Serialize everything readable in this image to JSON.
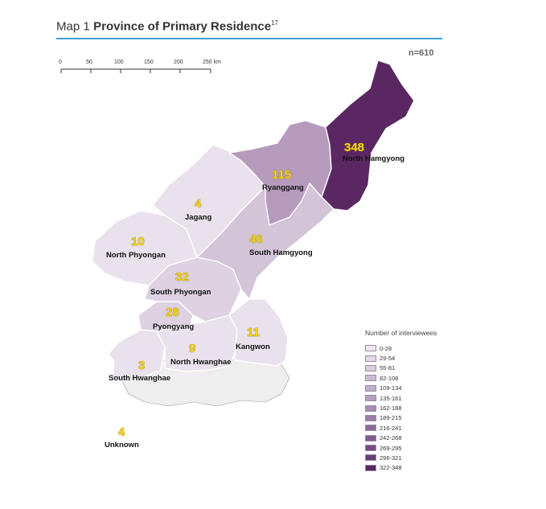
{
  "header": {
    "prefix": "Map 1",
    "title": "Province of Primary Residence",
    "footnote": "17"
  },
  "sample_size": "n=610",
  "scale_bar": {
    "ticks": [
      "0",
      "50",
      "100",
      "150",
      "200",
      "250 km"
    ]
  },
  "provinces": [
    {
      "name": "North Hamgyong",
      "count": "348",
      "color": "#5b2762"
    },
    {
      "name": "Ryanggang",
      "count": "115",
      "color": "#b69bbd"
    },
    {
      "name": "South Hamgyong",
      "count": "46",
      "color": "#d3c4d8"
    },
    {
      "name": "Jagang",
      "count": "4",
      "color": "#e9e1ec"
    },
    {
      "name": "North Phyongan",
      "count": "10",
      "color": "#e9e1ec"
    },
    {
      "name": "South Phyongan",
      "count": "32",
      "color": "#ddd1e2"
    },
    {
      "name": "Pyongyang",
      "count": "28",
      "color": "#ddd1e2"
    },
    {
      "name": "North Hwanghae",
      "count": "9",
      "color": "#e9e1ec"
    },
    {
      "name": "Kangwon",
      "count": "11",
      "color": "#e9e1ec"
    },
    {
      "name": "South Hwanghae",
      "count": "3",
      "color": "#e9e1ec"
    },
    {
      "name": "Unknown",
      "count": "4"
    }
  ],
  "legend": {
    "title": "Number of interviewees",
    "items": [
      {
        "label": "0-28",
        "color": "#ede6f0"
      },
      {
        "label": "29-54",
        "color": "#e3d9e7"
      },
      {
        "label": "55-81",
        "color": "#d9cbdf"
      },
      {
        "label": "82-108",
        "color": "#cdbcd5"
      },
      {
        "label": "109-134",
        "color": "#c1adca"
      },
      {
        "label": "135-161",
        "color": "#b69ec0"
      },
      {
        "label": "162-188",
        "color": "#a98db5"
      },
      {
        "label": "189-215",
        "color": "#9c7ca9"
      },
      {
        "label": "216-241",
        "color": "#8f6b9d"
      },
      {
        "label": "242-268",
        "color": "#835b91"
      },
      {
        "label": "269-295",
        "color": "#764a84"
      },
      {
        "label": "296-321",
        "color": "#693b77"
      },
      {
        "label": "322-348",
        "color": "#5b2762"
      }
    ]
  }
}
